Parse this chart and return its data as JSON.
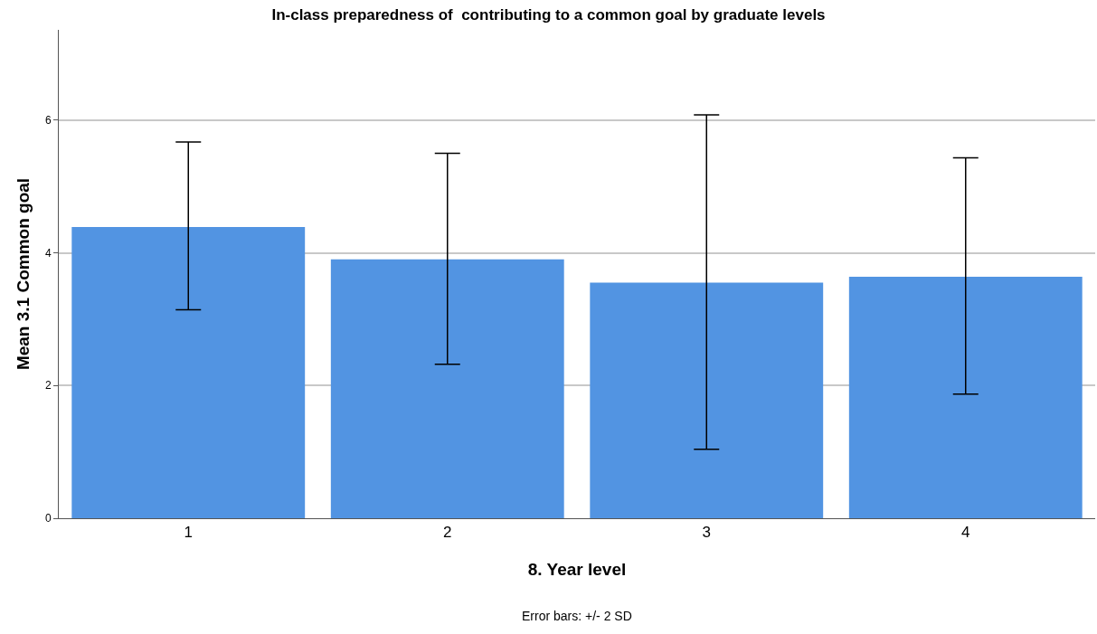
{
  "chart_data": {
    "type": "bar",
    "title": "In-class preparedness of  contributing to a common goal by graduate levels",
    "xlabel": "8. Year level",
    "ylabel": "Mean 3.1 Common goal",
    "categories": [
      "1",
      "2",
      "3",
      "4"
    ],
    "values": [
      4.39,
      3.9,
      3.55,
      3.64
    ],
    "errors": [
      [
        3.14,
        5.67
      ],
      [
        2.32,
        5.5
      ],
      [
        1.04,
        6.08
      ],
      [
        1.87,
        5.43
      ]
    ],
    "color": "#5294e2",
    "ylim": [
      0,
      7.36
    ],
    "yticks": [
      0,
      2,
      4,
      6
    ],
    "grid": "y",
    "annotations": [
      "Error bars: +/- 2 SD"
    ]
  }
}
